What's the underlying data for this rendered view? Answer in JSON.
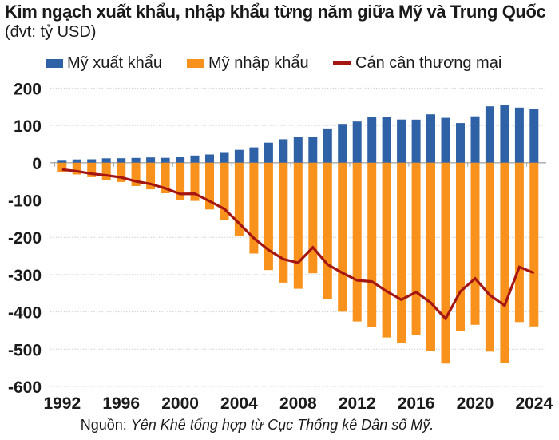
{
  "header": {
    "title": "Kim ngạch xuất khẩu, nhập khẩu từng năm giữa Mỹ và Trung Quốc",
    "subtitle": "(đvt: tỷ USD)"
  },
  "legend": [
    {
      "label": "Mỹ xuất khẩu",
      "color": "#2e61a5",
      "swatch": "bar"
    },
    {
      "label": "Mỹ nhập khẩu",
      "color": "#f8921d",
      "swatch": "bar"
    },
    {
      "label": "Cán cân thương mại",
      "color": "#a51512",
      "swatch": "line"
    }
  ],
  "footer": {
    "source_prefix": "Nguồn:",
    "source_text": "Yên Khê tổng hợp từ Cục Thống kê Dân số Mỹ."
  },
  "chart_data": {
    "type": "bar",
    "title": "Kim ngạch xuất khẩu, nhập khẩu từng năm giữa Mỹ và Trung Quốc",
    "unit": "tỷ USD",
    "x": [
      1992,
      1993,
      1994,
      1995,
      1996,
      1997,
      1998,
      1999,
      2000,
      2001,
      2002,
      2003,
      2004,
      2005,
      2006,
      2007,
      2008,
      2009,
      2010,
      2011,
      2012,
      2013,
      2014,
      2015,
      2016,
      2017,
      2018,
      2019,
      2020,
      2021,
      2022,
      2023,
      2024
    ],
    "series": [
      {
        "id": "exports",
        "name": "Mỹ xuất khẩu",
        "type": "bar",
        "color": "#2e61a5",
        "values": [
          7.4,
          8.8,
          9.3,
          11.7,
          12.0,
          12.8,
          14.2,
          13.1,
          16.2,
          19.2,
          22.1,
          28.4,
          34.4,
          41.2,
          53.7,
          62.9,
          69.7,
          69.5,
          91.9,
          104.1,
          110.5,
          121.7,
          123.7,
          115.9,
          115.6,
          129.8,
          120.3,
          106.4,
          124.5,
          151.1,
          153.8,
          147.8,
          143.5
        ]
      },
      {
        "id": "imports",
        "name": "Mỹ nhập khẩu",
        "type": "bar",
        "color": "#f8921d",
        "note": "plotted downward as negative values",
        "values": [
          -25.7,
          -31.5,
          -38.8,
          -45.6,
          -51.5,
          -62.6,
          -71.2,
          -81.8,
          -100.0,
          -102.3,
          -125.2,
          -152.4,
          -196.7,
          -243.5,
          -287.8,
          -321.4,
          -337.8,
          -296.4,
          -364.9,
          -399.4,
          -425.6,
          -440.4,
          -468.5,
          -483.2,
          -462.5,
          -505.5,
          -538.5,
          -451.7,
          -434.7,
          -506.4,
          -536.8,
          -427.2,
          -438.9
        ]
      },
      {
        "id": "balance",
        "name": "Cán cân thương mại",
        "type": "line",
        "color": "#a51512",
        "values": [
          -18.3,
          -22.8,
          -29.5,
          -33.8,
          -39.5,
          -49.7,
          -56.9,
          -68.7,
          -83.8,
          -83.1,
          -103.1,
          -124.0,
          -162.3,
          -202.3,
          -234.1,
          -258.5,
          -268.0,
          -226.9,
          -273.0,
          -295.2,
          -315.1,
          -318.7,
          -344.8,
          -367.3,
          -346.8,
          -375.6,
          -418.2,
          -345.2,
          -310.3,
          -355.3,
          -382.9,
          -279.4,
          -295.4
        ]
      }
    ],
    "ylim": [
      -600,
      200
    ],
    "ytick_step": 100,
    "ytick_labels": [
      "200",
      "100",
      "0",
      "-100",
      "-200",
      "-300",
      "-400",
      "-500",
      "-600"
    ],
    "xtick_labels": [
      "1992",
      "1996",
      "2000",
      "2004",
      "2008",
      "2012",
      "2016",
      "2020",
      "2024"
    ],
    "grid": "horizontal-dotted",
    "legend_position": "top",
    "grid_color": "#c8c8c8",
    "axis_color": "#a8a8a8"
  }
}
